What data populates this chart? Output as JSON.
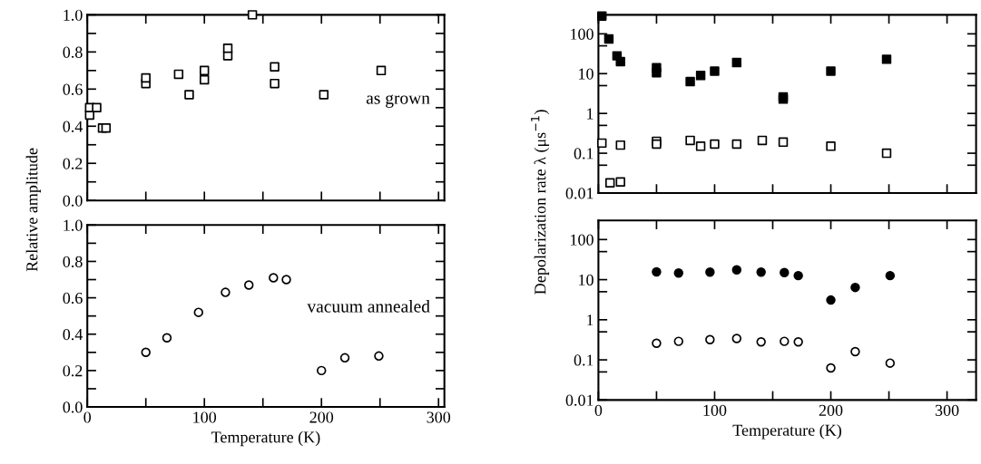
{
  "chart_data": [
    {
      "type": "scatter",
      "ylabel": "Relative amplitude",
      "annotations": [
        "as grown"
      ],
      "tick_labels": "y",
      "xlim": [
        0,
        305
      ],
      "ylim": [
        0,
        1
      ],
      "xticks": [
        0,
        {
          "value": 50,
          "label": null
        },
        100,
        {
          "value": 150,
          "label": null
        },
        200,
        {
          "value": 250,
          "label": null
        },
        300
      ],
      "yticks": [
        {
          "value": 0,
          "label": "0.0"
        },
        {
          "value": 0.1,
          "label": null
        },
        {
          "value": 0.2,
          "label": "0.2"
        },
        {
          "value": 0.3,
          "label": null
        },
        {
          "value": 0.4,
          "label": "0.4"
        },
        {
          "value": 0.5,
          "label": null
        },
        {
          "value": 0.6,
          "label": "0.6"
        },
        {
          "value": 0.7,
          "label": null
        },
        {
          "value": 0.8,
          "label": "0.8"
        },
        {
          "value": 0.9,
          "label": null
        },
        {
          "value": 1,
          "label": "1.0"
        }
      ],
      "marker": "square",
      "series": [
        {
          "color": "#ffffff",
          "x": [
            2,
            2,
            8,
            13,
            16,
            50,
            50,
            78,
            87,
            100,
            100,
            120,
            120,
            141,
            160,
            160,
            202,
            251
          ],
          "values": [
            0.46,
            0.5,
            0.5,
            0.39,
            0.39,
            0.63,
            0.66,
            0.68,
            0.57,
            0.65,
            0.7,
            0.78,
            0.82,
            1.0,
            0.63,
            0.72,
            0.57,
            0.7
          ]
        }
      ]
    },
    {
      "type": "scatter",
      "ylabel": "Depolarization rate λ (μs$^{−1}$)",
      "tick_labels": "y",
      "log": "y",
      "xlim": [
        0,
        325
      ],
      "ylim": [
        0.01,
        300
      ],
      "xticks": [
        0,
        {
          "value": 50,
          "label": null
        },
        100,
        {
          "value": 150,
          "label": null
        },
        200,
        {
          "value": 250,
          "label": null
        },
        300
      ],
      "yticks": [
        0.01,
        {
          "value": 0.05,
          "label": null
        },
        0.1,
        {
          "value": 0.5,
          "label": null
        },
        1,
        {
          "value": 5,
          "label": null
        },
        10,
        {
          "value": 50,
          "label": null
        },
        100
      ],
      "marker": "square",
      "series": [
        {
          "color": "#000000",
          "x": [
            3,
            9,
            16,
            19,
            50,
            50,
            79,
            88,
            100,
            119,
            159,
            159,
            200,
            248
          ],
          "values": [
            280,
            74,
            28,
            20,
            14,
            10.5,
            6.3,
            9,
            11.5,
            19,
            2.6,
            2.3,
            11.6,
            23
          ]
        },
        {
          "color": "#ffffff",
          "x": [
            3,
            10,
            19,
            19,
            50,
            50,
            79,
            88,
            100,
            119,
            141,
            159,
            200,
            248
          ],
          "values": [
            0.18,
            0.018,
            0.019,
            0.16,
            0.2,
            0.17,
            0.21,
            0.15,
            0.17,
            0.17,
            0.21,
            0.19,
            0.15,
            0.1
          ]
        }
      ]
    },
    {
      "type": "scatter",
      "xlabel": "Temperature (K)",
      "annotations": [
        "vacuum annealed"
      ],
      "xlim": [
        0,
        305
      ],
      "ylim": [
        0,
        1
      ],
      "xticks": [
        0,
        {
          "value": 50,
          "label": null
        },
        100,
        {
          "value": 150,
          "label": null
        },
        200,
        {
          "value": 250,
          "label": null
        },
        300
      ],
      "yticks": [
        {
          "value": 0,
          "label": "0.0"
        },
        {
          "value": 0.1,
          "label": null
        },
        {
          "value": 0.2,
          "label": "0.2"
        },
        {
          "value": 0.3,
          "label": null
        },
        {
          "value": 0.4,
          "label": "0.4"
        },
        {
          "value": 0.5,
          "label": null
        },
        {
          "value": 0.6,
          "label": "0.6"
        },
        {
          "value": 0.7,
          "label": null
        },
        {
          "value": 0.8,
          "label": "0.8"
        },
        {
          "value": 0.9,
          "label": null
        },
        {
          "value": 1,
          "label": "1.0"
        }
      ],
      "marker": "circle",
      "series": [
        {
          "color": "#ffffff",
          "x": [
            50,
            68,
            95,
            118,
            138,
            159,
            170,
            200,
            220,
            249
          ],
          "values": [
            0.3,
            0.38,
            0.52,
            0.63,
            0.67,
            0.71,
            0.7,
            0.2,
            0.27,
            0.28
          ]
        }
      ]
    },
    {
      "type": "scatter",
      "xlabel": "Temperature (K)",
      "log": "y",
      "xlim": [
        0,
        325
      ],
      "ylim": [
        0.01,
        300
      ],
      "xticks": [
        0,
        {
          "value": 50,
          "label": null
        },
        100,
        {
          "value": 150,
          "label": null
        },
        200,
        {
          "value": 250,
          "label": null
        },
        300
      ],
      "yticks": [
        0.01,
        {
          "value": 0.05,
          "label": null
        },
        0.1,
        {
          "value": 0.5,
          "label": null
        },
        1,
        {
          "value": 5,
          "label": null
        },
        10,
        {
          "value": 50,
          "label": null
        },
        100
      ],
      "marker": "circle",
      "series": [
        {
          "color": "#000000",
          "x": [
            50,
            69,
            96,
            119,
            140,
            160,
            172,
            200,
            221,
            251
          ],
          "values": [
            15.6,
            14.6,
            15.4,
            17.6,
            15.4,
            15,
            12.6,
            3.1,
            6.4,
            12.6
          ]
        },
        {
          "color": "#ffffff",
          "x": [
            50,
            69,
            96,
            119,
            140,
            160,
            172,
            200,
            221,
            251
          ],
          "values": [
            0.26,
            0.29,
            0.32,
            0.34,
            0.28,
            0.29,
            0.28,
            0.063,
            0.16,
            0.083
          ]
        }
      ]
    }
  ]
}
